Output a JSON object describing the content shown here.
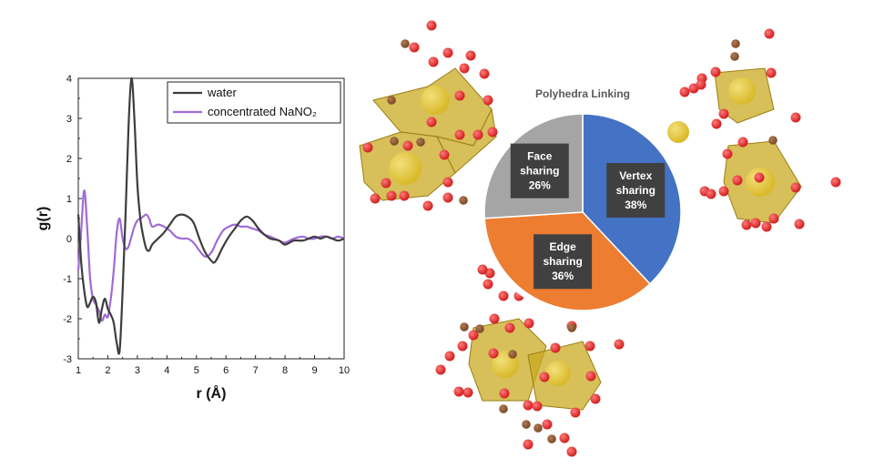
{
  "chart_data": [
    {
      "type": "line",
      "xlabel": "r (Å)",
      "ylabel": "g(r)",
      "xlim": [
        1,
        10
      ],
      "ylim": [
        -3,
        4
      ],
      "xticks": [
        "1",
        "2",
        "3",
        "4",
        "5",
        "6",
        "7",
        "8",
        "9",
        "10"
      ],
      "yticks": [
        "-3",
        "-2",
        "-1",
        "0",
        "1",
        "2",
        "3",
        "4"
      ],
      "legend_position": "top-right",
      "grid": false,
      "series": [
        {
          "name": "water",
          "color": "#3d3d3d",
          "x": [
            1.0,
            1.1,
            1.2,
            1.3,
            1.4,
            1.5,
            1.6,
            1.7,
            1.8,
            1.9,
            2.0,
            2.1,
            2.2,
            2.3,
            2.4,
            2.5,
            2.6,
            2.7,
            2.8,
            2.9,
            3.0,
            3.1,
            3.2,
            3.3,
            3.4,
            3.5,
            3.7,
            3.9,
            4.1,
            4.3,
            4.5,
            4.7,
            4.9,
            5.1,
            5.3,
            5.5,
            5.6,
            5.7,
            5.9,
            6.1,
            6.3,
            6.5,
            6.7,
            6.9,
            7.1,
            7.3,
            7.5,
            7.8,
            8.0,
            8.3,
            8.6,
            8.8,
            9.0,
            9.2,
            9.4,
            9.6,
            9.8,
            10.0
          ],
          "y": [
            0.6,
            -0.6,
            -1.3,
            -1.7,
            -1.6,
            -1.45,
            -1.6,
            -2.1,
            -1.75,
            -1.5,
            -1.75,
            -1.9,
            -2.1,
            -2.6,
            -2.8,
            -1.3,
            0.6,
            2.8,
            4.0,
            3.0,
            1.35,
            0.5,
            0.05,
            -0.25,
            -0.3,
            -0.15,
            0.0,
            0.15,
            0.35,
            0.55,
            0.6,
            0.55,
            0.4,
            0.0,
            -0.35,
            -0.55,
            -0.6,
            -0.5,
            -0.2,
            0.05,
            0.25,
            0.45,
            0.55,
            0.45,
            0.25,
            0.1,
            0.0,
            -0.05,
            -0.15,
            -0.05,
            -0.05,
            0.0,
            0.05,
            0.0,
            0.05,
            0.0,
            -0.05,
            0.0
          ]
        },
        {
          "name": "concentrated NaNO₂",
          "color": "#a06bd6",
          "x": [
            1.0,
            1.1,
            1.2,
            1.3,
            1.4,
            1.5,
            1.6,
            1.7,
            1.8,
            1.9,
            2.0,
            2.1,
            2.2,
            2.3,
            2.4,
            2.5,
            2.6,
            2.7,
            2.8,
            2.9,
            3.0,
            3.1,
            3.2,
            3.3,
            3.4,
            3.5,
            3.7,
            3.9,
            4.1,
            4.3,
            4.5,
            4.7,
            4.9,
            5.1,
            5.3,
            5.5,
            5.7,
            5.9,
            6.1,
            6.3,
            6.5,
            6.7,
            6.9,
            7.1,
            7.3,
            7.5,
            7.8,
            8.0,
            8.3,
            8.6,
            8.8,
            9.0,
            9.2,
            9.4,
            9.6,
            9.8,
            10.0
          ],
          "y": [
            -0.8,
            0.2,
            1.2,
            0.3,
            -1.0,
            -1.5,
            -1.65,
            -1.8,
            -2.05,
            -1.9,
            -1.95,
            -1.5,
            -0.8,
            0.15,
            0.5,
            0.0,
            -0.25,
            -0.2,
            0.05,
            0.3,
            0.45,
            0.5,
            0.55,
            0.6,
            0.5,
            0.3,
            0.35,
            0.3,
            0.2,
            0.05,
            0.0,
            0.0,
            -0.1,
            -0.3,
            -0.45,
            -0.35,
            -0.05,
            0.2,
            0.3,
            0.35,
            0.3,
            0.3,
            0.25,
            0.2,
            0.1,
            0.05,
            -0.05,
            -0.1,
            0.0,
            0.05,
            0.0,
            0.0,
            0.05,
            0.05,
            0.0,
            0.05,
            0.0
          ]
        }
      ]
    },
    {
      "type": "pie",
      "title": "Polyhedra Linking",
      "slices": [
        {
          "label_line1": "Vertex",
          "label_line2": "sharing",
          "value_label": "38%",
          "value": 38,
          "color": "#4472c4"
        },
        {
          "label_line1": "Edge",
          "label_line2": "sharing",
          "value_label": "36%",
          "value": 36,
          "color": "#ed7d31"
        },
        {
          "label_line1": "Face",
          "label_line2": "sharing",
          "value_label": "26%",
          "value": 26,
          "color": "#a5a5a5"
        }
      ]
    }
  ],
  "illustration": {
    "description_icon": "molecular-polyhedra-illustration",
    "colors": {
      "polyhedron": "#c9a923",
      "oxygen": "#d21f1f",
      "nitrogen": "#7a4a26",
      "sodium": "#d9b92a"
    }
  }
}
